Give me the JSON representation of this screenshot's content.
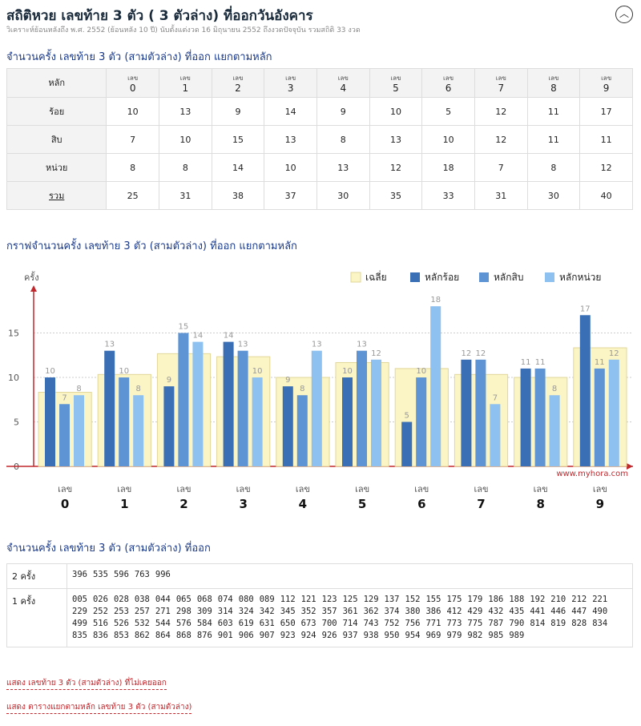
{
  "header": {
    "title": "สถิติหวย เลขท้าย 3 ตัว ( 3 ตัวล่าง) ที่ออกวันอังคาร",
    "subtitle": "วิเคราะห์ย้อนหลังถึง พ.ศ. 2552 (ย้อนหลัง 10 ปี) นับตั้งแต่งวด 16 มิถุนายน 2552 ถึงงวดปัจจุบัน รวมสถิติ 33 งวด",
    "collapse_icon": "chevron-up-icon"
  },
  "frequency_table": {
    "heading": "จำนวนครั้ง เลขท้าย 3 ตัว (สามตัวล่าง) ที่ออก แยกตามหลัก",
    "corner_label": "หลัก",
    "column_prefix": "เลข",
    "digits": [
      "0",
      "1",
      "2",
      "3",
      "4",
      "5",
      "6",
      "7",
      "8",
      "9"
    ],
    "rows": [
      {
        "label": "ร้อย",
        "values": [
          10,
          13,
          9,
          14,
          9,
          10,
          5,
          12,
          11,
          17
        ]
      },
      {
        "label": "สิบ",
        "values": [
          7,
          10,
          15,
          13,
          8,
          13,
          10,
          12,
          11,
          11
        ]
      },
      {
        "label": "หน่วย",
        "values": [
          8,
          8,
          14,
          10,
          13,
          12,
          18,
          7,
          8,
          12
        ]
      }
    ],
    "total": {
      "label": "รวม",
      "values": [
        25,
        31,
        38,
        37,
        30,
        35,
        33,
        31,
        30,
        40
      ]
    }
  },
  "chart_section": {
    "heading": "กราฟจำนวนครั้ง เลขท้าย 3 ตัว (สามตัวล่าง) ที่ออก แยกตามหลัก"
  },
  "chart_data": {
    "type": "bar",
    "ylabel": "ครั้ง",
    "xlabel": "",
    "ylim": [
      0,
      20
    ],
    "yticks": [
      0,
      5,
      10,
      15
    ],
    "grid": true,
    "legend_position": "top-right",
    "category_prefix": "เลข",
    "categories": [
      "0",
      "1",
      "2",
      "3",
      "4",
      "5",
      "6",
      "7",
      "8",
      "9"
    ],
    "series": [
      {
        "name": "เฉลี่ย",
        "values": [
          8.33,
          10.33,
          12.67,
          12.33,
          10,
          11.67,
          11,
          10.33,
          10,
          13.33
        ],
        "color": "#fbf4c4"
      },
      {
        "name": "หลักร้อย",
        "values": [
          10,
          13,
          9,
          14,
          9,
          10,
          5,
          12,
          11,
          17
        ],
        "color": "#3a6fb6"
      },
      {
        "name": "หลักสิบ",
        "values": [
          7,
          10,
          15,
          13,
          8,
          13,
          10,
          12,
          11,
          11
        ],
        "color": "#5e94d4"
      },
      {
        "name": "หลักหน่วย",
        "values": [
          8,
          8,
          14,
          10,
          13,
          12,
          18,
          7,
          8,
          12
        ],
        "color": "#8ec0f0"
      }
    ],
    "watermark": "www.myhora.com"
  },
  "occurrence_list": {
    "heading": "จำนวนครั้ง เลขท้าย 3 ตัว (สามตัวล่าง) ที่ออก",
    "rows": [
      {
        "label": "2 ครั้ง",
        "numbers": [
          "396",
          "535",
          "596",
          "763",
          "996"
        ]
      },
      {
        "label": "1 ครั้ง",
        "numbers": [
          "005",
          "026",
          "028",
          "038",
          "044",
          "065",
          "068",
          "074",
          "080",
          "089",
          "112",
          "121",
          "123",
          "125",
          "129",
          "137",
          "152",
          "155",
          "175",
          "179",
          "186",
          "188",
          "192",
          "210",
          "212",
          "221",
          "229",
          "252",
          "253",
          "257",
          "271",
          "298",
          "309",
          "314",
          "324",
          "342",
          "345",
          "352",
          "357",
          "361",
          "362",
          "374",
          "380",
          "386",
          "412",
          "429",
          "432",
          "435",
          "441",
          "446",
          "447",
          "490",
          "499",
          "516",
          "526",
          "532",
          "544",
          "576",
          "584",
          "603",
          "619",
          "631",
          "650",
          "673",
          "700",
          "714",
          "743",
          "752",
          "756",
          "771",
          "773",
          "775",
          "787",
          "790",
          "814",
          "819",
          "828",
          "834",
          "835",
          "836",
          "853",
          "862",
          "864",
          "868",
          "876",
          "901",
          "906",
          "907",
          "923",
          "924",
          "926",
          "937",
          "938",
          "950",
          "954",
          "969",
          "979",
          "982",
          "985",
          "989"
        ]
      }
    ]
  },
  "links": {
    "show_never_drawn": "แสดง เลขท้าย 3 ตัว (สามตัวล่าง) ที่ไม่เคยออก",
    "show_by_position": "แสดง ตารางแยกตามหลัก เลขท้าย 3 ตัว (สามตัวล่าง)"
  }
}
